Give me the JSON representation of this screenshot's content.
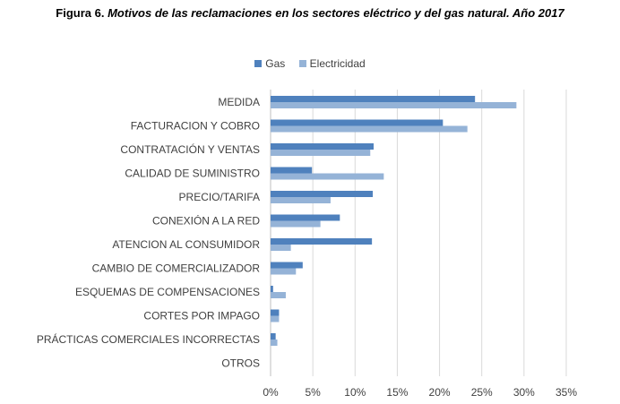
{
  "figure": {
    "label": "Figura 6.",
    "title": "Motivos de las reclamaciones en los sectores eléctrico y del gas natural. Año 2017"
  },
  "chart_data": {
    "type": "bar",
    "orientation": "horizontal",
    "categories": [
      "MEDIDA",
      "FACTURACION Y COBRO",
      "CONTRATACIÓN Y VENTAS",
      "CALIDAD DE SUMINISTRO",
      "PRECIO/TARIFA",
      "CONEXIÓN A LA RED",
      "ATENCION AL CONSUMIDOR",
      "CAMBIO DE COMERCIALIZADOR",
      "ESQUEMAS DE COMPENSACIONES",
      "CORTES POR IMPAGO",
      "PRÁCTICAS COMERCIALES INCORRECTAS",
      "OTROS"
    ],
    "series": [
      {
        "name": "Gas",
        "color": "#4f81bd",
        "values": [
          24.2,
          20.4,
          12.2,
          4.9,
          12.1,
          8.2,
          12.0,
          3.8,
          0.3,
          1.0,
          0.6,
          0.0
        ]
      },
      {
        "name": "Electricidad",
        "color": "#95b3d7",
        "values": [
          29.1,
          23.3,
          11.8,
          13.4,
          7.1,
          5.9,
          2.4,
          3.0,
          1.8,
          1.0,
          0.8,
          0.0
        ]
      }
    ],
    "x_ticks": [
      "0%",
      "5%",
      "10%",
      "15%",
      "20%",
      "25%",
      "30%",
      "35%"
    ],
    "xlim": [
      0,
      35
    ],
    "legend_position": "top",
    "grid": true
  }
}
